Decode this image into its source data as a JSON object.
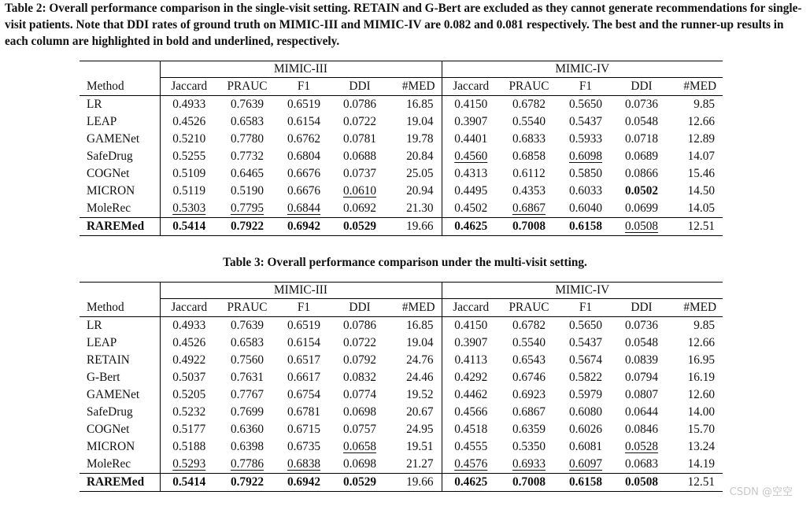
{
  "table2": {
    "caption": "Table 2: Overall performance comparison in the single-visit setting. RETAIN and G-Bert are excluded as they cannot generate recommendations for single-visit patients. Note that DDI rates of ground truth on MIMIC-III and MIMIC-IV are 0.082 and 0.081 respectively. The best and the runner-up results in each column are highlighted in bold and underlined, respectively.",
    "groups": [
      "MIMIC-III",
      "MIMIC-IV"
    ],
    "columns": [
      "Method",
      "Jaccard",
      "PRAUC",
      "F1",
      "DDI",
      "#MED",
      "Jaccard",
      "PRAUC",
      "F1",
      "DDI",
      "#MED"
    ],
    "rows": [
      [
        "LR",
        "0.4933",
        "0.7639",
        "0.6519",
        "0.0786",
        "16.85",
        "0.4150",
        "0.6782",
        "0.5650",
        "0.0736",
        "9.85"
      ],
      [
        "LEAP",
        "0.4526",
        "0.6583",
        "0.6154",
        "0.0722",
        "19.04",
        "0.3907",
        "0.5540",
        "0.5437",
        "0.0548",
        "12.66"
      ],
      [
        "GAMENet",
        "0.5210",
        "0.7780",
        "0.6762",
        "0.0781",
        "19.78",
        "0.4401",
        "0.6833",
        "0.5933",
        "0.0718",
        "12.89"
      ],
      [
        "SafeDrug",
        "0.5255",
        "0.7732",
        "0.6804",
        "0.0688",
        "20.84",
        "0.4560",
        "0.6858",
        "0.6098",
        "0.0689",
        "14.07"
      ],
      [
        "COGNet",
        "0.5109",
        "0.6465",
        "0.6676",
        "0.0737",
        "25.05",
        "0.4313",
        "0.6112",
        "0.5850",
        "0.0866",
        "15.46"
      ],
      [
        "MICRON",
        "0.5119",
        "0.5190",
        "0.6676",
        "0.0610",
        "20.94",
        "0.4495",
        "0.4353",
        "0.6033",
        "0.0502",
        "14.50"
      ],
      [
        "MoleRec",
        "0.5303",
        "0.7795",
        "0.6844",
        "0.0692",
        "21.30",
        "0.4502",
        "0.6867",
        "0.6040",
        "0.0699",
        "14.05"
      ],
      [
        "RAREMed",
        "0.5414",
        "0.7922",
        "0.6942",
        "0.0529",
        "19.66",
        "0.4625",
        "0.7008",
        "0.6158",
        "0.0508",
        "12.51"
      ]
    ],
    "bold": [
      [
        7,
        1
      ],
      [
        7,
        2
      ],
      [
        7,
        3
      ],
      [
        7,
        4
      ],
      [
        7,
        6
      ],
      [
        7,
        7
      ],
      [
        7,
        8
      ],
      [
        5,
        9
      ]
    ],
    "underline": [
      [
        6,
        1
      ],
      [
        6,
        2
      ],
      [
        6,
        3
      ],
      [
        5,
        4
      ],
      [
        3,
        6
      ],
      [
        6,
        7
      ],
      [
        3,
        8
      ],
      [
        7,
        9
      ]
    ]
  },
  "table3": {
    "caption": "Table 3: Overall performance comparison under the multi-visit setting.",
    "groups": [
      "MIMIC-III",
      "MIMIC-IV"
    ],
    "columns": [
      "Method",
      "Jaccard",
      "PRAUC",
      "F1",
      "DDI",
      "#MED",
      "Jaccard",
      "PRAUC",
      "F1",
      "DDI",
      "#MED"
    ],
    "rows": [
      [
        "LR",
        "0.4933",
        "0.7639",
        "0.6519",
        "0.0786",
        "16.85",
        "0.4150",
        "0.6782",
        "0.5650",
        "0.0736",
        "9.85"
      ],
      [
        "LEAP",
        "0.4526",
        "0.6583",
        "0.6154",
        "0.0722",
        "19.04",
        "0.3907",
        "0.5540",
        "0.5437",
        "0.0548",
        "12.66"
      ],
      [
        "RETAIN",
        "0.4922",
        "0.7560",
        "0.6517",
        "0.0792",
        "24.76",
        "0.4113",
        "0.6543",
        "0.5674",
        "0.0839",
        "16.95"
      ],
      [
        "G-Bert",
        "0.5037",
        "0.7631",
        "0.6617",
        "0.0832",
        "24.46",
        "0.4292",
        "0.6746",
        "0.5822",
        "0.0794",
        "16.19"
      ],
      [
        "GAMENet",
        "0.5205",
        "0.7767",
        "0.6754",
        "0.0774",
        "19.52",
        "0.4462",
        "0.6923",
        "0.5979",
        "0.0807",
        "12.60"
      ],
      [
        "SafeDrug",
        "0.5232",
        "0.7699",
        "0.6781",
        "0.0698",
        "20.67",
        "0.4566",
        "0.6867",
        "0.6080",
        "0.0644",
        "14.00"
      ],
      [
        "COGNet",
        "0.5177",
        "0.6360",
        "0.6715",
        "0.0757",
        "24.95",
        "0.4518",
        "0.6359",
        "0.6026",
        "0.0846",
        "15.70"
      ],
      [
        "MICRON",
        "0.5188",
        "0.6398",
        "0.6735",
        "0.0658",
        "19.51",
        "0.4555",
        "0.5350",
        "0.6081",
        "0.0528",
        "13.24"
      ],
      [
        "MoleRec",
        "0.5293",
        "0.7786",
        "0.6838",
        "0.0698",
        "21.27",
        "0.4576",
        "0.6933",
        "0.6097",
        "0.0683",
        "14.19"
      ],
      [
        "RAREMed",
        "0.5414",
        "0.7922",
        "0.6942",
        "0.0529",
        "19.66",
        "0.4625",
        "0.7008",
        "0.6158",
        "0.0508",
        "12.51"
      ]
    ],
    "bold": [
      [
        9,
        1
      ],
      [
        9,
        2
      ],
      [
        9,
        3
      ],
      [
        9,
        4
      ],
      [
        9,
        6
      ],
      [
        9,
        7
      ],
      [
        9,
        8
      ],
      [
        9,
        9
      ]
    ],
    "underline": [
      [
        8,
        1
      ],
      [
        8,
        2
      ],
      [
        8,
        3
      ],
      [
        7,
        4
      ],
      [
        8,
        6
      ],
      [
        8,
        7
      ],
      [
        8,
        8
      ],
      [
        7,
        9
      ]
    ]
  },
  "watermark": "CSDN @空空"
}
